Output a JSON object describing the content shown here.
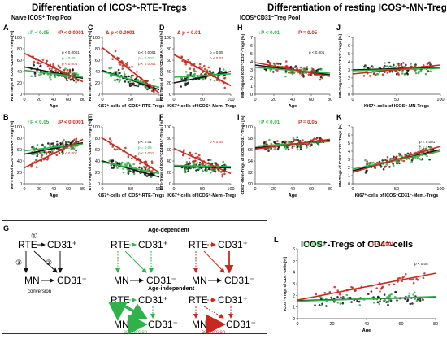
{
  "titles": {
    "left": "Differentiation of ICOS⁺-RTE-Tregs",
    "right": "Differentiation of resting ICOS⁺-MN-Tregs",
    "left_sub": "Naive ICOS⁺ Treg Pool",
    "right_sub": "ICOS⁺CD31⁻Treg Pool",
    "L_title": "ICOS⁺-Tregs of CD4⁺-cells"
  },
  "colors": {
    "healthy": "#2fb24a",
    "young": "#111111",
    "old": "#c8281e",
    "grey": "#999999"
  },
  "chart_data": [
    {
      "id": "A",
      "type": "scatter",
      "ylabel": "RTE-Tregs of ICOS⁺CD45RA⁺-Tregs [%]",
      "xlabel": "Age",
      "xticks": [
        "0",
        "20",
        "40",
        "60",
        "80"
      ],
      "yticks": [
        "0",
        "20",
        "40",
        "60",
        "80",
        "100"
      ],
      "xlim": [
        0,
        80
      ],
      "ylim": [
        0,
        100
      ],
      "annotations": [
        {
          "text": "↓P < 0.05",
          "color": "green"
        },
        {
          "text": "↑P < 0.0001",
          "color": "red"
        }
      ],
      "pvals": [
        {
          "text": "p < 0.0001",
          "color": "black"
        },
        {
          "text": "p = 0.05",
          "color": "green"
        },
        {
          "text": "p < 0.001",
          "color": "red"
        }
      ],
      "trend": [
        {
          "color": "black",
          "y0": 48,
          "y1": 28
        },
        {
          "color": "green",
          "y0": 42,
          "y1": 30
        },
        {
          "color": "red",
          "y0": 72,
          "y1": 22
        }
      ]
    },
    {
      "id": "B",
      "type": "scatter",
      "ylabel": "MN-Tregs of ICOS⁺CD45RA⁺-Tregs [%]",
      "xlabel": "Age",
      "xticks": [
        "0",
        "20",
        "40",
        "60",
        "80"
      ],
      "yticks": [
        "0",
        "20",
        "40",
        "60",
        "80",
        "100"
      ],
      "xlim": [
        0,
        80
      ],
      "ylim": [
        0,
        100
      ],
      "annotations": [
        {
          "text": "↑P < 0.05",
          "color": "green"
        },
        {
          "text": "↓P < 0.0001",
          "color": "red"
        }
      ],
      "pvals": [
        {
          "text": "p < 0.0001",
          "color": "black"
        },
        {
          "text": "p = 0.05",
          "color": "green"
        },
        {
          "text": "p < 0.001",
          "color": "red"
        }
      ],
      "trend": [
        {
          "color": "black",
          "y0": 52,
          "y1": 72
        },
        {
          "color": "green",
          "y0": 58,
          "y1": 70
        },
        {
          "color": "red",
          "y0": 28,
          "y1": 78
        }
      ]
    },
    {
      "id": "C",
      "type": "scatter",
      "ylabel": "RTE-Tregs of ICOS⁺CD45RA⁺-Tregs [%]",
      "xlabel": "Ki67⁺-cells of ICOS⁺-RTE-Tregs",
      "xticks": [
        "0",
        "50",
        "100"
      ],
      "yticks": [
        "0",
        "20",
        "40",
        "60",
        "80",
        "100"
      ],
      "xlim": [
        0,
        100
      ],
      "ylim": [
        0,
        100
      ],
      "annotations": [
        {
          "text": "Δ p < 0.0001",
          "color": "red"
        }
      ],
      "pvals": [
        {
          "text": "p < 0.0001",
          "color": "black"
        },
        {
          "text": "p = 0.001",
          "color": "green"
        },
        {
          "text": "p < 0.0001",
          "color": "red"
        }
      ],
      "trend": [
        {
          "color": "black",
          "y0": 42,
          "y1": 8
        },
        {
          "color": "green",
          "y0": 40,
          "y1": 12
        },
        {
          "color": "red",
          "y0": 82,
          "y1": 2
        }
      ]
    },
    {
      "id": "D",
      "type": "scatter",
      "ylabel": "RTE-Tregs of ICOS⁺CD45RA⁺-Tregs [%]",
      "xlabel": "Ki67⁺-cells of ICOS⁺-Mem.-Tregs",
      "xticks": [
        "0",
        "50",
        "100"
      ],
      "yticks": [
        "0",
        "20",
        "40",
        "60",
        "80",
        "100"
      ],
      "xlim": [
        0,
        100
      ],
      "ylim": [
        0,
        100
      ],
      "annotations": [
        {
          "text": "Δ p < 0.01",
          "color": "red"
        }
      ],
      "pvals": [
        {
          "text": "p = 0.05",
          "color": "black"
        },
        {
          "text": "p < 0.01",
          "color": "red"
        }
      ],
      "trend": [
        {
          "color": "black",
          "y0": 20,
          "y1": 40
        },
        {
          "color": "green",
          "y0": 30,
          "y1": 36
        },
        {
          "color": "red",
          "y0": 70,
          "y1": 15
        }
      ]
    },
    {
      "id": "E",
      "type": "scatter",
      "ylabel": "RTE-Tregs of ICOS⁺CD45RA⁺-Tregs [%]",
      "xlabel": "Ki67⁺-cells of ICOS⁺-RTE-Tregs",
      "xticks": [
        "0",
        "50",
        "100"
      ],
      "yticks": [
        "0",
        "20",
        "40",
        "60",
        "80",
        "100"
      ],
      "xlim": [
        0,
        100
      ],
      "ylim": [
        0,
        100
      ],
      "pvals": [
        {
          "text": "p < 0.01",
          "color": "black"
        },
        {
          "text": "p = 0.05",
          "color": "green"
        },
        {
          "text": "p < 0.001",
          "color": "red"
        }
      ],
      "trend": [
        {
          "color": "black",
          "y0": 40,
          "y1": 12
        },
        {
          "color": "green",
          "y0": 38,
          "y1": 18
        },
        {
          "color": "red",
          "y0": 80,
          "y1": 20
        }
      ]
    },
    {
      "id": "F",
      "type": "scatter",
      "ylabel": "RTE-Tregs of ICOS⁺CD45RA⁺-Tregs [%]",
      "xlabel": "Ki67⁺-cells of ICOS⁺-Mem.-Tregs",
      "xticks": [
        "0",
        "50",
        "100"
      ],
      "yticks": [
        "0",
        "20",
        "40",
        "60",
        "80",
        "100"
      ],
      "xlim": [
        0,
        100
      ],
      "ylim": [
        0,
        100
      ],
      "pvals": [
        {
          "text": "p < 0.05",
          "color": "red"
        }
      ],
      "trend": [
        {
          "color": "black",
          "y0": 30,
          "y1": 28
        },
        {
          "color": "green",
          "y0": 32,
          "y1": 30
        },
        {
          "color": "red",
          "y0": 62,
          "y1": 18
        }
      ]
    },
    {
      "id": "H",
      "type": "scatter",
      "ylabel": "MN-Tregs of ICOS⁺CD31⁻-Tregs [%]",
      "xlabel": "Age",
      "xticks": [
        "0",
        "20",
        "40",
        "60",
        "80"
      ],
      "yticks": [
        "0",
        "1",
        "2",
        "3",
        "4",
        "5",
        "6",
        "7"
      ],
      "xlim": [
        0,
        80
      ],
      "ylim": [
        0,
        7
      ],
      "annotations": [
        {
          "text": "↓P < 0.01",
          "color": "green"
        },
        {
          "text": "↑P = 0.05",
          "color": "red"
        }
      ],
      "pvals": [
        {
          "text": "p < 0.001",
          "color": "black"
        }
      ],
      "trend": [
        {
          "color": "black",
          "y0": 3.6,
          "y1": 2.4
        },
        {
          "color": "green",
          "y0": 3.3,
          "y1": 2.6
        },
        {
          "color": "red",
          "y0": 3.9,
          "y1": 2.2
        }
      ]
    },
    {
      "id": "I",
      "type": "scatter",
      "ylabel": "CD31⁻-Mem-Tregs of ICOS⁺CD31⁻-Tregs [%]",
      "xlabel": "Age",
      "xticks": [
        "0",
        "20",
        "40",
        "60",
        "80"
      ],
      "yticks": [
        "90",
        "92",
        "94",
        "96",
        "98",
        "100"
      ],
      "xlim": [
        0,
        80
      ],
      "ylim": [
        90,
        100
      ],
      "annotations": [
        {
          "text": "↑P < 0.01",
          "color": "green"
        },
        {
          "text": "↓P = 0.05",
          "color": "red"
        }
      ],
      "pvals": [
        {
          "text": "p < 0.001",
          "color": "black"
        }
      ],
      "trend": [
        {
          "color": "black",
          "y0": 96.3,
          "y1": 97.6
        },
        {
          "color": "green",
          "y0": 96.6,
          "y1": 97.4
        },
        {
          "color": "red",
          "y0": 96.1,
          "y1": 97.8
        }
      ]
    },
    {
      "id": "J",
      "type": "scatter",
      "ylabel": "MN-Tregs of ICOS⁺CD31⁻-Tregs [%]",
      "xlabel": "Ki67⁺-cells of ICOS⁺-MN-Tregs",
      "xticks": [
        "0",
        "50",
        "100"
      ],
      "yticks": [
        "0",
        "1",
        "2",
        "3",
        "4",
        "5",
        "6",
        "7"
      ],
      "xlim": [
        0,
        100
      ],
      "ylim": [
        0,
        7
      ],
      "pvals": [],
      "trend": [
        {
          "color": "black",
          "y0": 3.0,
          "y1": 3.3
        },
        {
          "color": "green",
          "y0": 2.9,
          "y1": 3.2
        },
        {
          "color": "red",
          "y0": 2.5,
          "y1": 3.6
        }
      ]
    },
    {
      "id": "K",
      "type": "scatter",
      "ylabel": "MN-Tregs of ICOS⁺CD31⁻-Tregs [%]",
      "xlabel": "Ki67⁺-cells of ICOS⁺CD31⁻-Mem.-Tregs",
      "xticks": [
        "0",
        "50",
        "100"
      ],
      "yticks": [
        "0",
        "1",
        "2",
        "3",
        "4",
        "5",
        "6",
        "7"
      ],
      "xlim": [
        0,
        100
      ],
      "ylim": [
        0,
        7
      ],
      "pvals": [
        {
          "text": "p < 0.001",
          "color": "black"
        },
        {
          "text": "p < 0.01",
          "color": "green"
        },
        {
          "text": "p < 0.01",
          "color": "red"
        }
      ],
      "trend": [
        {
          "color": "black",
          "y0": 1.6,
          "y1": 4.2
        },
        {
          "color": "green",
          "y0": 1.8,
          "y1": 4.0
        },
        {
          "color": "red",
          "y0": 1.4,
          "y1": 4.6
        }
      ]
    },
    {
      "id": "L",
      "type": "scatter",
      "ylabel": "ICOS⁺-Tregs of CD4⁺-cells [%]",
      "xlabel": "Age",
      "xticks": [
        "0",
        "20",
        "40",
        "60",
        "80"
      ],
      "yticks": [
        "0",
        "1",
        "2",
        "3",
        "4",
        "5",
        "6"
      ],
      "xlim": [
        0,
        80
      ],
      "ylim": [
        0,
        6
      ],
      "annotations": [
        {
          "text": "↑P < 0.001",
          "color": "green"
        },
        {
          "text": "↑P < 0.001",
          "color": "red"
        }
      ],
      "pvals": [
        {
          "text": "p < 0.05",
          "color": "black"
        }
      ],
      "trend": [
        {
          "color": "black",
          "y0": 1.55,
          "y1": 1.85
        },
        {
          "color": "green",
          "y0": 1.5,
          "y1": 1.9
        },
        {
          "color": "red",
          "y0": 1.6,
          "y1": 3.9
        }
      ]
    }
  ],
  "diagram": {
    "label": "G",
    "age_dependent": "Age-dependent",
    "age_independent": "Age-independent",
    "rte": "RTE",
    "mn": "MN",
    "cd31p": "CD31⁺",
    "cd31m": "CD31⁻",
    "conversion": "conversion",
    "c1": "①",
    "c2": "②",
    "c3": "③"
  }
}
